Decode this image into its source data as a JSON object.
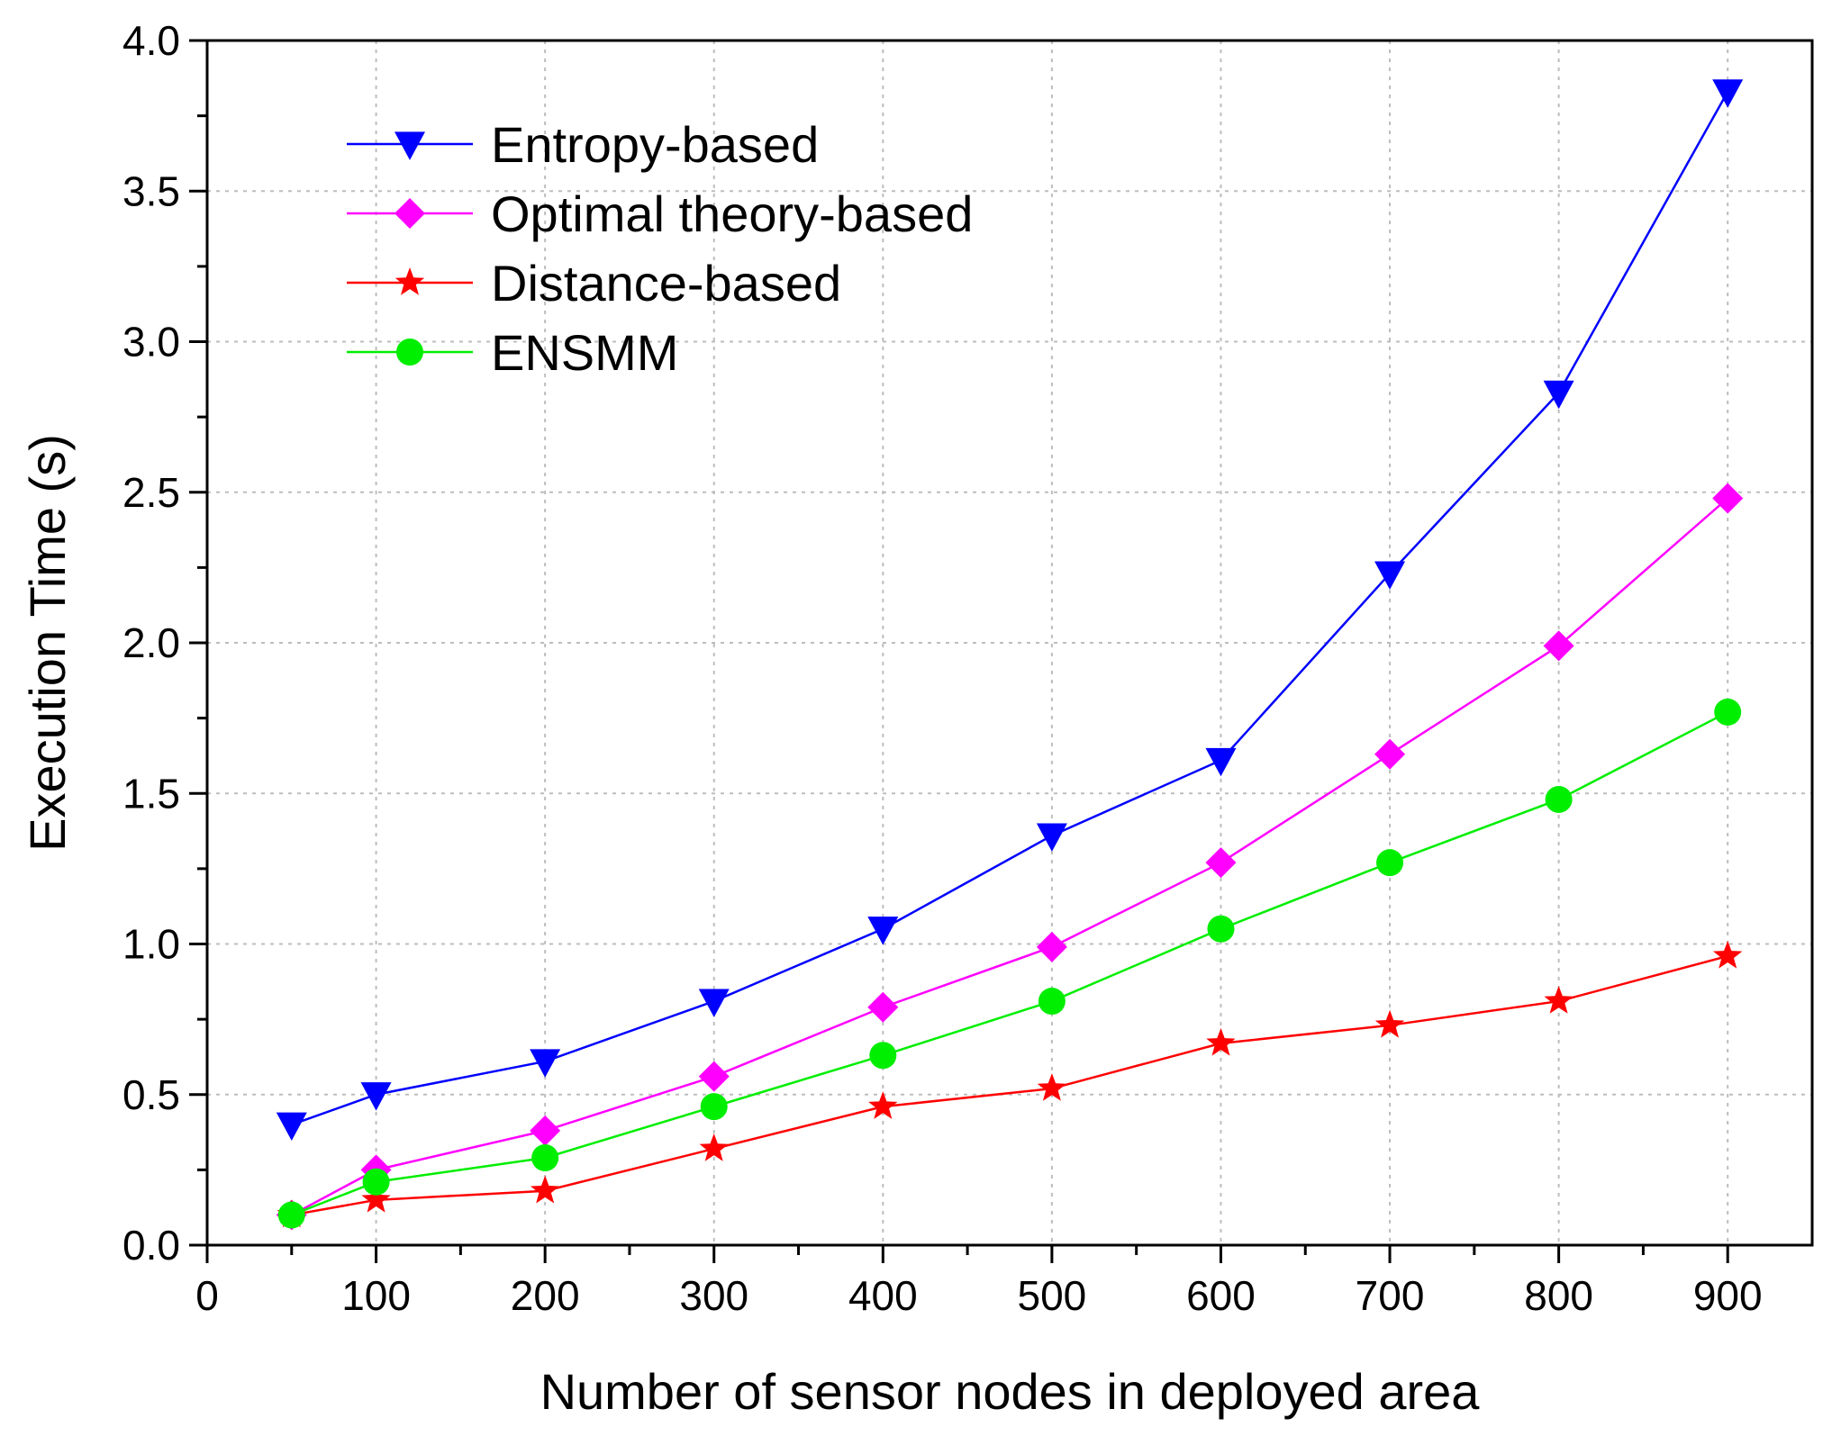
{
  "chart_data": {
    "type": "line",
    "xlabel": "Number of sensor nodes in deployed area",
    "ylabel": "Execution Time (s)",
    "xlim": [
      0,
      950
    ],
    "ylim": [
      0,
      4.0
    ],
    "xticks": [
      0,
      100,
      200,
      300,
      400,
      500,
      600,
      700,
      800,
      900
    ],
    "xtick_labels": [
      "0",
      "100",
      "200",
      "300",
      "400",
      "500",
      "600",
      "700",
      "800",
      "900"
    ],
    "yticks": [
      0,
      0.5,
      1.0,
      1.5,
      2.0,
      2.5,
      3.0,
      3.5,
      4.0
    ],
    "ytick_labels": [
      "0.0",
      "0.5",
      "1.0",
      "1.5",
      "2.0",
      "2.5",
      "3.0",
      "3.5",
      "4.0"
    ],
    "grid": true,
    "legend_position": "top-left",
    "x": [
      50,
      100,
      200,
      300,
      400,
      500,
      600,
      700,
      800,
      900
    ],
    "series": [
      {
        "name": "Entropy-based",
        "color": "#0000ff",
        "marker": "triangle-down",
        "values": [
          0.4,
          0.5,
          0.61,
          0.81,
          1.05,
          1.36,
          1.61,
          2.23,
          2.83,
          3.83
        ]
      },
      {
        "name": "Optimal theory-based",
        "color": "#ff00ff",
        "marker": "diamond",
        "values": [
          0.1,
          0.25,
          0.38,
          0.56,
          0.79,
          0.99,
          1.27,
          1.63,
          1.99,
          2.48
        ]
      },
      {
        "name": "Distance-based",
        "color": "#ff0000",
        "marker": "star",
        "values": [
          0.1,
          0.15,
          0.18,
          0.32,
          0.46,
          0.52,
          0.67,
          0.73,
          0.81,
          0.96
        ]
      },
      {
        "name": "ENSMM",
        "color": "#00ee00",
        "marker": "circle",
        "values": [
          0.1,
          0.21,
          0.29,
          0.46,
          0.63,
          0.81,
          1.05,
          1.27,
          1.48,
          1.77
        ]
      }
    ]
  }
}
